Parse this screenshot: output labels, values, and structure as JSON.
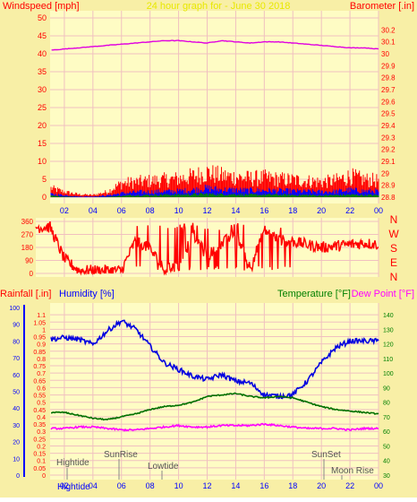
{
  "header": {
    "left": "Windspeed [mph]",
    "center": "24 hour graph for - June 30 2018",
    "right": "Barometer [.in]"
  },
  "colors": {
    "background": "#f8efa6",
    "plot_background": "#fefcc4",
    "grid": "#f0c0c0",
    "axis_red": "#ff0000",
    "axis_blue": "#0000ff",
    "axis_green": "#008000",
    "wind": "#ff0000",
    "wind_avg": "#0000ff",
    "wind_low": "#008000",
    "barometer": "#e000e0",
    "direction": "#ff0000",
    "humidity": "#0000e0",
    "temperature": "#007000",
    "dewpoint": "#ff00ff",
    "header_center": "#e8e800"
  },
  "compass_labels": [
    "N",
    "W",
    "S",
    "E",
    "N"
  ],
  "bottom_header": {
    "rainfall": "Rainfall [.in]",
    "humidity": "Humidity [%]",
    "temperature": "Temperature [°F]",
    "dewpoint": "Dew Point [°F]"
  },
  "events": {
    "hightide_upper": "Hightide",
    "sunrise": "SunRise",
    "lowtide": "Lowtide",
    "sunset": "SunSet",
    "moonrise": "Moon Rise",
    "hightide_bottom": "Hightide"
  },
  "chart_data": [
    {
      "type": "line",
      "x_ticks": [
        "02",
        "04",
        "06",
        "08",
        "10",
        "12",
        "14",
        "16",
        "18",
        "20",
        "22",
        "00"
      ],
      "y_left_ticks": [
        "0",
        "5",
        "10",
        "15",
        "20",
        "25",
        "30",
        "35",
        "40",
        "45",
        "50"
      ],
      "ylim_left": [
        0,
        50
      ],
      "y_right_ticks": [
        "28.8",
        "28.9",
        "29",
        "29.1",
        "29.2",
        "29.3",
        "29.4",
        "29.5",
        "29.6",
        "29.7",
        "29.8",
        "29.9",
        "30",
        "30.1",
        "30.2"
      ],
      "ylim_right": [
        28.8,
        30.3
      ],
      "grid": true,
      "series": [
        {
          "values_hourly": [
            2.2,
            2.6,
            1.5,
            0.8,
            0.6,
            1.5,
            3.8,
            4.2,
            4.5,
            4.8,
            5.1,
            5.8,
            6.8,
            5.9,
            5.6,
            5.2,
            5.4,
            5.0,
            4.8,
            4.5,
            4.2,
            4.6,
            5.8,
            4.9,
            4.6
          ]
        },
        {
          "values_hourly": [
            0.8,
            0.9,
            0.6,
            0.2,
            0.2,
            0.5,
            1.1,
            1.4,
            1.5,
            1.6,
            1.7,
            2.0,
            2.5,
            2.1,
            2.0,
            1.9,
            1.9,
            1.8,
            1.7,
            1.6,
            1.5,
            1.6,
            2.0,
            1.7,
            1.7
          ]
        },
        {
          "values_hourly": [
            0.3,
            0.4,
            0.2,
            0.0,
            0.0,
            0.1,
            0.4,
            0.6,
            0.6,
            0.7,
            0.7,
            0.8,
            0.9,
            0.8,
            0.8,
            0.7,
            0.7,
            0.7,
            0.6,
            0.6,
            0.5,
            0.6,
            0.7,
            0.6,
            0.6
          ]
        },
        {
          "values_hourly": [
            30.03,
            30.03,
            30.04,
            30.05,
            30.06,
            30.07,
            30.08,
            30.09,
            30.1,
            30.11,
            30.11,
            30.1,
            30.09,
            30.11,
            30.1,
            30.09,
            30.1,
            30.1,
            30.09,
            30.08,
            30.07,
            30.06,
            30.05,
            30.05,
            30.04
          ]
        }
      ]
    },
    {
      "type": "scatter",
      "y_ticks": [
        "0",
        "90",
        "180",
        "270",
        "360"
      ],
      "ylim": [
        0,
        360
      ],
      "grid": true,
      "series": [
        {
          "values_hourly": [
            320,
            320,
            100,
            20,
            20,
            20,
            20,
            230,
            170,
            25,
            50,
            270,
            120,
            200,
            290,
            40,
            300,
            230,
            220,
            200,
            180,
            190,
            200,
            210,
            200
          ]
        }
      ]
    },
    {
      "type": "line",
      "rain_ticks": [
        "0",
        "0.05",
        "0.1",
        "0.15",
        "0.2",
        "0.25",
        "0.3",
        "0.35",
        "0.4",
        "0.45",
        "0.5",
        "0.55",
        "0.6",
        "0.65",
        "0.7",
        "0.75",
        "0.8",
        "0.85",
        "0.9",
        "0.95",
        "1",
        "1.05",
        "1.1"
      ],
      "ylim_rain": [
        0,
        1.15
      ],
      "humidity_ticks": [
        "0",
        "10",
        "20",
        "30",
        "40",
        "50",
        "60",
        "70",
        "80",
        "90",
        "100"
      ],
      "ylim_humidity": [
        0,
        100
      ],
      "temp_ticks": [
        "30",
        "40",
        "50",
        "60",
        "70",
        "80",
        "90",
        "100",
        "110",
        "120",
        "130",
        "140"
      ],
      "ylim_temp": [
        30,
        145
      ],
      "grid": true,
      "series": [
        {
          "values_hourly": [
            81,
            81,
            82,
            81,
            78,
            86,
            92,
            87,
            77,
            67,
            63,
            59,
            57,
            60,
            56,
            55,
            48,
            47,
            48,
            56,
            67,
            76,
            80,
            80,
            80
          ]
        },
        {
          "values_hourly": [
            73,
            73,
            73,
            71,
            69,
            68,
            70,
            72,
            75,
            77,
            78,
            80,
            84,
            85,
            86,
            84,
            83,
            84,
            83,
            80,
            77,
            75,
            74,
            73,
            72
          ]
        },
        {
          "values_hourly": [
            61,
            62,
            62,
            63,
            63,
            62,
            61,
            61,
            62,
            63,
            64,
            63,
            63,
            64,
            64,
            64,
            65,
            64,
            63,
            62,
            62,
            62,
            61,
            62,
            62
          ]
        },
        {
          "values_hourly": [
            0,
            0,
            0,
            0,
            0,
            0,
            0,
            0,
            0,
            0,
            0,
            0,
            0,
            0,
            0,
            0,
            0,
            0,
            0,
            0,
            0,
            0,
            0,
            0,
            0
          ]
        }
      ]
    }
  ]
}
